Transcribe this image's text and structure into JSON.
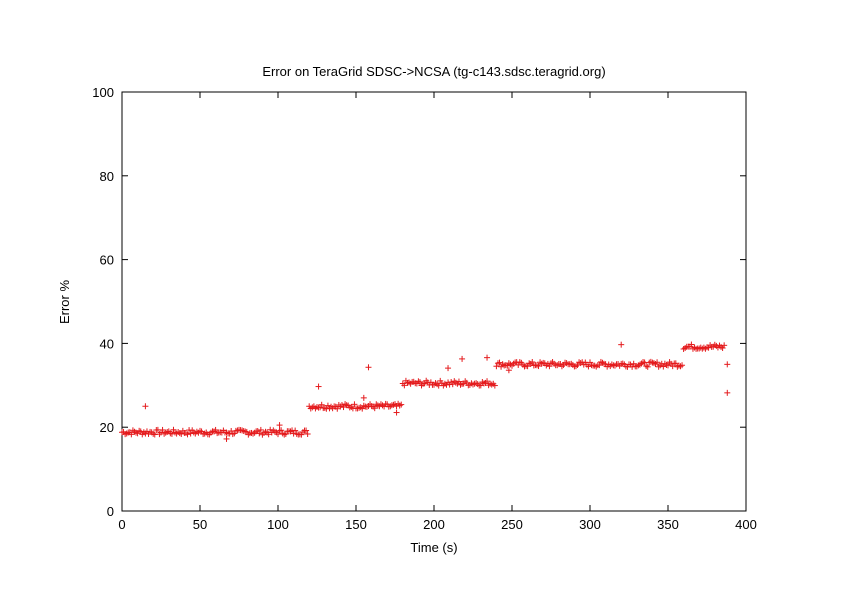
{
  "chart_data": {
    "type": "scatter",
    "title": "Error on TeraGrid SDSC->NCSA (tg-c143.sdsc.teragrid.org)",
    "xlabel": "Time (s)",
    "ylabel": "Error %",
    "xlim": [
      0,
      400
    ],
    "ylim": [
      0,
      100
    ],
    "xticks": [
      0,
      50,
      100,
      150,
      200,
      250,
      300,
      350,
      400
    ],
    "yticks": [
      0,
      20,
      40,
      60,
      80,
      100
    ],
    "xtick_labels": [
      "0",
      "50",
      "100",
      "150",
      "200",
      "250",
      "300",
      "350",
      "400"
    ],
    "ytick_labels": [
      "0",
      "20",
      "40",
      "60",
      "80",
      "100"
    ],
    "grid": false,
    "legend": "none",
    "marker": "+",
    "color": "#e41a1c",
    "segments": [
      {
        "x_start": 0,
        "x_end": 119,
        "level": 18.8
      },
      {
        "x_start": 120,
        "x_end": 179,
        "level": 25.0
      },
      {
        "x_start": 180,
        "x_end": 239,
        "level": 30.5
      },
      {
        "x_start": 240,
        "x_end": 359,
        "level": 35.0
      },
      {
        "x_start": 360,
        "x_end": 386,
        "level": 39.2
      }
    ],
    "outliers": [
      {
        "x": 15,
        "y": 25
      },
      {
        "x": 67,
        "y": 17.2
      },
      {
        "x": 101,
        "y": 20.5
      },
      {
        "x": 126,
        "y": 29.7
      },
      {
        "x": 155,
        "y": 27
      },
      {
        "x": 158,
        "y": 34.3
      },
      {
        "x": 176,
        "y": 23.5
      },
      {
        "x": 209,
        "y": 34.1
      },
      {
        "x": 218,
        "y": 36.3
      },
      {
        "x": 234,
        "y": 36.6
      },
      {
        "x": 248,
        "y": 33.6
      },
      {
        "x": 320,
        "y": 39.7
      },
      {
        "x": 388,
        "y": 35
      },
      {
        "x": 388,
        "y": 28.2
      }
    ]
  }
}
